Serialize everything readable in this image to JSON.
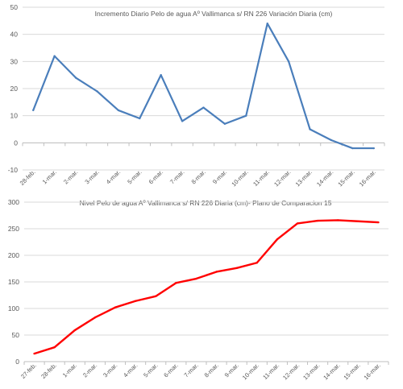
{
  "chart_data": [
    {
      "type": "line",
      "title": "Incremento Diario Pelo de agua Aº Vallimanca s/ RN 226 Variación Diaria (cm)",
      "categories": [
        "28-feb.",
        "1-mar.",
        "2-mar.",
        "3-mar.",
        "4-mar.",
        "5-mar.",
        "6-mar.",
        "7-mar.",
        "8-mar.",
        "9-mar.",
        "10-mar.",
        "11-mar.",
        "12-mar.",
        "13-mar.",
        "14-mar.",
        "15-mar.",
        "16-mar."
      ],
      "series": [
        {
          "values": [
            12,
            32,
            24,
            19,
            12,
            9,
            25,
            8,
            13,
            7,
            10,
            44,
            30,
            5,
            1,
            -2,
            -2
          ]
        }
      ],
      "ylim": [
        -10,
        50
      ],
      "yticks": [
        -10,
        0,
        10,
        20,
        30,
        40,
        50
      ],
      "grid": true,
      "color": "#4a7ebb"
    },
    {
      "type": "line",
      "title": "Nivel Pelo de agua Aº Vallimanca s/ RN 226 Diaria (cm)- Plano de Comparacion 15",
      "categories": [
        "27-feb.",
        "28-feb.",
        "1-mar.",
        "2-mar.",
        "3-mar.",
        "4-mar.",
        "5-mar.",
        "6-mar.",
        "7-mar.",
        "8-mar.",
        "9-mar.",
        "10-mar.",
        "11-mar.",
        "12-mar.",
        "13-mar.",
        "14-mar.",
        "15-mar.",
        "16-mar."
      ],
      "series": [
        {
          "values": [
            15,
            27,
            59,
            83,
            102,
            114,
            123,
            148,
            156,
            169,
            176,
            186,
            230,
            260,
            265,
            266,
            264,
            262
          ]
        }
      ],
      "ylim": [
        0,
        300
      ],
      "yticks": [
        0,
        50,
        100,
        150,
        200,
        250,
        300
      ],
      "grid": true,
      "color": "#ff0000"
    }
  ]
}
